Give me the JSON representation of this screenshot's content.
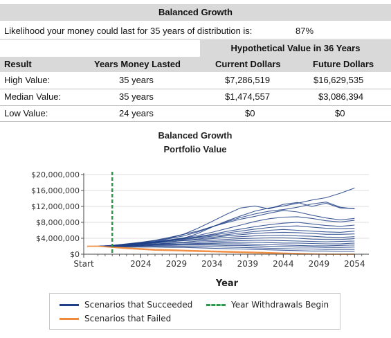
{
  "header": {
    "title": "Balanced Growth"
  },
  "likelihood": {
    "label": "Likelihood your money could last for 35 years of distribution is:",
    "value": "87%"
  },
  "table": {
    "group_header": "Hypothetical Value in 36 Years",
    "columns": [
      "Result",
      "Years Money Lasted",
      "Current Dollars",
      "Future Dollars"
    ],
    "rows": [
      [
        "High Value:",
        "35 years",
        "$7,286,519",
        "$16,629,535"
      ],
      [
        "Median Value:",
        "35 years",
        "$1,474,557",
        "$3,086,394"
      ],
      [
        "Low Value:",
        "24 years",
        "$0",
        "$0"
      ]
    ]
  },
  "chart_data": {
    "type": "line",
    "title": "Balanced Growth",
    "subtitle": "Portfolio Value",
    "xlabel": "Year",
    "ylabel": "",
    "x_ticks": [
      "Start",
      "2024",
      "2029",
      "2034",
      "2039",
      "2044",
      "2049",
      "2054"
    ],
    "y_ticks": [
      "$0",
      "$4,000,000",
      "$8,000,000",
      "$12,000,000",
      "$16,000,000",
      "$20,000,000"
    ],
    "xlim": [
      2016,
      2056
    ],
    "ylim": [
      0,
      20000000
    ],
    "withdrawal_start_year": 2020,
    "grid": true,
    "legend": "bottom",
    "colors": {
      "succeeded": "#1f3f86",
      "failed": "#f08a3c",
      "withdrawal": "#2a9a4a"
    },
    "years": [
      2018,
      2020,
      2022,
      2024,
      2026,
      2028,
      2030,
      2032,
      2034,
      2036,
      2038,
      2040,
      2042,
      2044,
      2046,
      2048,
      2050,
      2052,
      2054
    ],
    "series": [
      {
        "group": "succeeded",
        "values": [
          2.0,
          2.1,
          2.3,
          2.6,
          3.0,
          3.5,
          4.0,
          5.2,
          6.8,
          8.3,
          9.6,
          10.8,
          11.6,
          12.1,
          12.8,
          13.6,
          14.2,
          15.3,
          16.6
        ]
      },
      {
        "group": "succeeded",
        "values": [
          2.0,
          2.2,
          2.5,
          2.9,
          3.4,
          4.0,
          5.0,
          6.5,
          8.2,
          10.0,
          11.6,
          12.1,
          11.4,
          12.5,
          13.0,
          12.0,
          12.8,
          11.6,
          11.5
        ]
      },
      {
        "group": "succeeded",
        "values": [
          2.0,
          2.1,
          2.4,
          2.8,
          3.2,
          3.9,
          4.6,
          5.6,
          6.9,
          8.1,
          9.2,
          10.1,
          10.8,
          11.2,
          11.8,
          12.6,
          13.1,
          11.8,
          11.4
        ]
      },
      {
        "group": "succeeded",
        "values": [
          2.0,
          2.2,
          2.6,
          3.0,
          3.5,
          4.2,
          5.0,
          5.8,
          6.9,
          7.9,
          8.8,
          9.5,
          10.3,
          11.0,
          10.6,
          9.8,
          9.1,
          8.6,
          9.0
        ]
      },
      {
        "group": "succeeded",
        "values": [
          2.0,
          2.1,
          2.3,
          2.7,
          3.1,
          3.6,
          4.1,
          4.7,
          5.5,
          6.4,
          7.3,
          8.2,
          8.9,
          9.3,
          9.4,
          9.0,
          8.4,
          8.1,
          8.5
        ]
      },
      {
        "group": "succeeded",
        "values": [
          2.0,
          2.1,
          2.4,
          2.7,
          3.0,
          3.4,
          3.9,
          4.4,
          5.0,
          5.7,
          6.3,
          6.9,
          7.4,
          7.8,
          8.0,
          7.6,
          7.2,
          7.0,
          7.3
        ]
      },
      {
        "group": "succeeded",
        "values": [
          2.0,
          2.2,
          2.5,
          2.8,
          3.1,
          3.5,
          3.9,
          4.3,
          4.8,
          5.3,
          5.8,
          6.3,
          6.7,
          7.0,
          7.1,
          6.8,
          6.5,
          6.4,
          6.5
        ]
      },
      {
        "group": "succeeded",
        "values": [
          2.0,
          2.1,
          2.3,
          2.6,
          2.9,
          3.3,
          3.7,
          4.1,
          4.5,
          4.9,
          5.3,
          5.7,
          6.0,
          6.2,
          6.0,
          5.8,
          5.6,
          5.5,
          5.8
        ]
      },
      {
        "group": "succeeded",
        "values": [
          2.0,
          2.1,
          2.3,
          2.5,
          2.8,
          3.1,
          3.5,
          3.8,
          4.2,
          4.6,
          4.9,
          5.2,
          5.4,
          5.5,
          5.4,
          5.2,
          5.0,
          5.0,
          5.1
        ]
      },
      {
        "group": "succeeded",
        "values": [
          2.0,
          2.1,
          2.4,
          2.6,
          2.9,
          3.1,
          3.4,
          3.6,
          3.9,
          4.2,
          4.4,
          4.6,
          4.7,
          4.8,
          4.6,
          4.5,
          4.3,
          4.2,
          4.4
        ]
      },
      {
        "group": "succeeded",
        "values": [
          2.0,
          2.1,
          2.2,
          2.4,
          2.6,
          2.8,
          3.0,
          3.3,
          3.5,
          3.7,
          3.9,
          4.0,
          4.1,
          4.1,
          4.0,
          3.8,
          3.7,
          3.7,
          3.9
        ]
      },
      {
        "group": "succeeded",
        "values": [
          2.0,
          2.0,
          2.2,
          2.3,
          2.5,
          2.7,
          2.9,
          3.0,
          3.2,
          3.3,
          3.4,
          3.5,
          3.5,
          3.4,
          3.3,
          3.2,
          3.1,
          3.2,
          3.3
        ]
      },
      {
        "group": "succeeded",
        "values": [
          2.0,
          2.0,
          2.1,
          2.2,
          2.4,
          2.5,
          2.6,
          2.7,
          2.8,
          2.9,
          3.0,
          3.0,
          2.9,
          2.8,
          2.8,
          2.7,
          2.6,
          2.6,
          2.8
        ]
      },
      {
        "group": "succeeded",
        "values": [
          2.0,
          2.0,
          2.1,
          2.2,
          2.3,
          2.4,
          2.5,
          2.5,
          2.6,
          2.6,
          2.6,
          2.5,
          2.4,
          2.3,
          2.2,
          2.1,
          2.1,
          2.2,
          2.3
        ]
      },
      {
        "group": "succeeded",
        "values": [
          2.0,
          2.0,
          2.0,
          2.1,
          2.2,
          2.2,
          2.3,
          2.3,
          2.3,
          2.2,
          2.2,
          2.1,
          2.0,
          1.9,
          1.8,
          1.8,
          1.7,
          1.7,
          1.8
        ]
      },
      {
        "group": "succeeded",
        "values": [
          2.0,
          1.9,
          1.9,
          1.9,
          2.0,
          2.0,
          2.0,
          1.9,
          1.9,
          1.8,
          1.7,
          1.6,
          1.5,
          1.4,
          1.3,
          1.3,
          1.2,
          1.2,
          1.2
        ]
      },
      {
        "group": "succeeded",
        "values": [
          2.0,
          1.9,
          1.8,
          1.8,
          1.8,
          1.7,
          1.7,
          1.6,
          1.5,
          1.4,
          1.3,
          1.2,
          1.1,
          1.0,
          0.9,
          0.8,
          0.8,
          0.7,
          0.7
        ]
      },
      {
        "group": "failed",
        "values": [
          2.0,
          1.8,
          1.6,
          1.4,
          1.2,
          1.1,
          1.0,
          0.9,
          0.8,
          0.7,
          0.6,
          0.5,
          0.4,
          0.3,
          0.2,
          0.1,
          0.0,
          0.0,
          0.0
        ]
      },
      {
        "group": "failed",
        "values": [
          2.0,
          1.7,
          1.4,
          1.2,
          1.0,
          0.9,
          0.8,
          0.7,
          0.6,
          0.5,
          0.4,
          0.3,
          0.2,
          0.1,
          0.0,
          0.0,
          0.0,
          0.0,
          0.0
        ]
      }
    ],
    "series_value_unit": 1000000
  },
  "legend": {
    "succeeded": "Scenarios that Succeeded",
    "failed": "Scenarios that Failed",
    "withdrawal": "Year Withdrawals Begin"
  }
}
